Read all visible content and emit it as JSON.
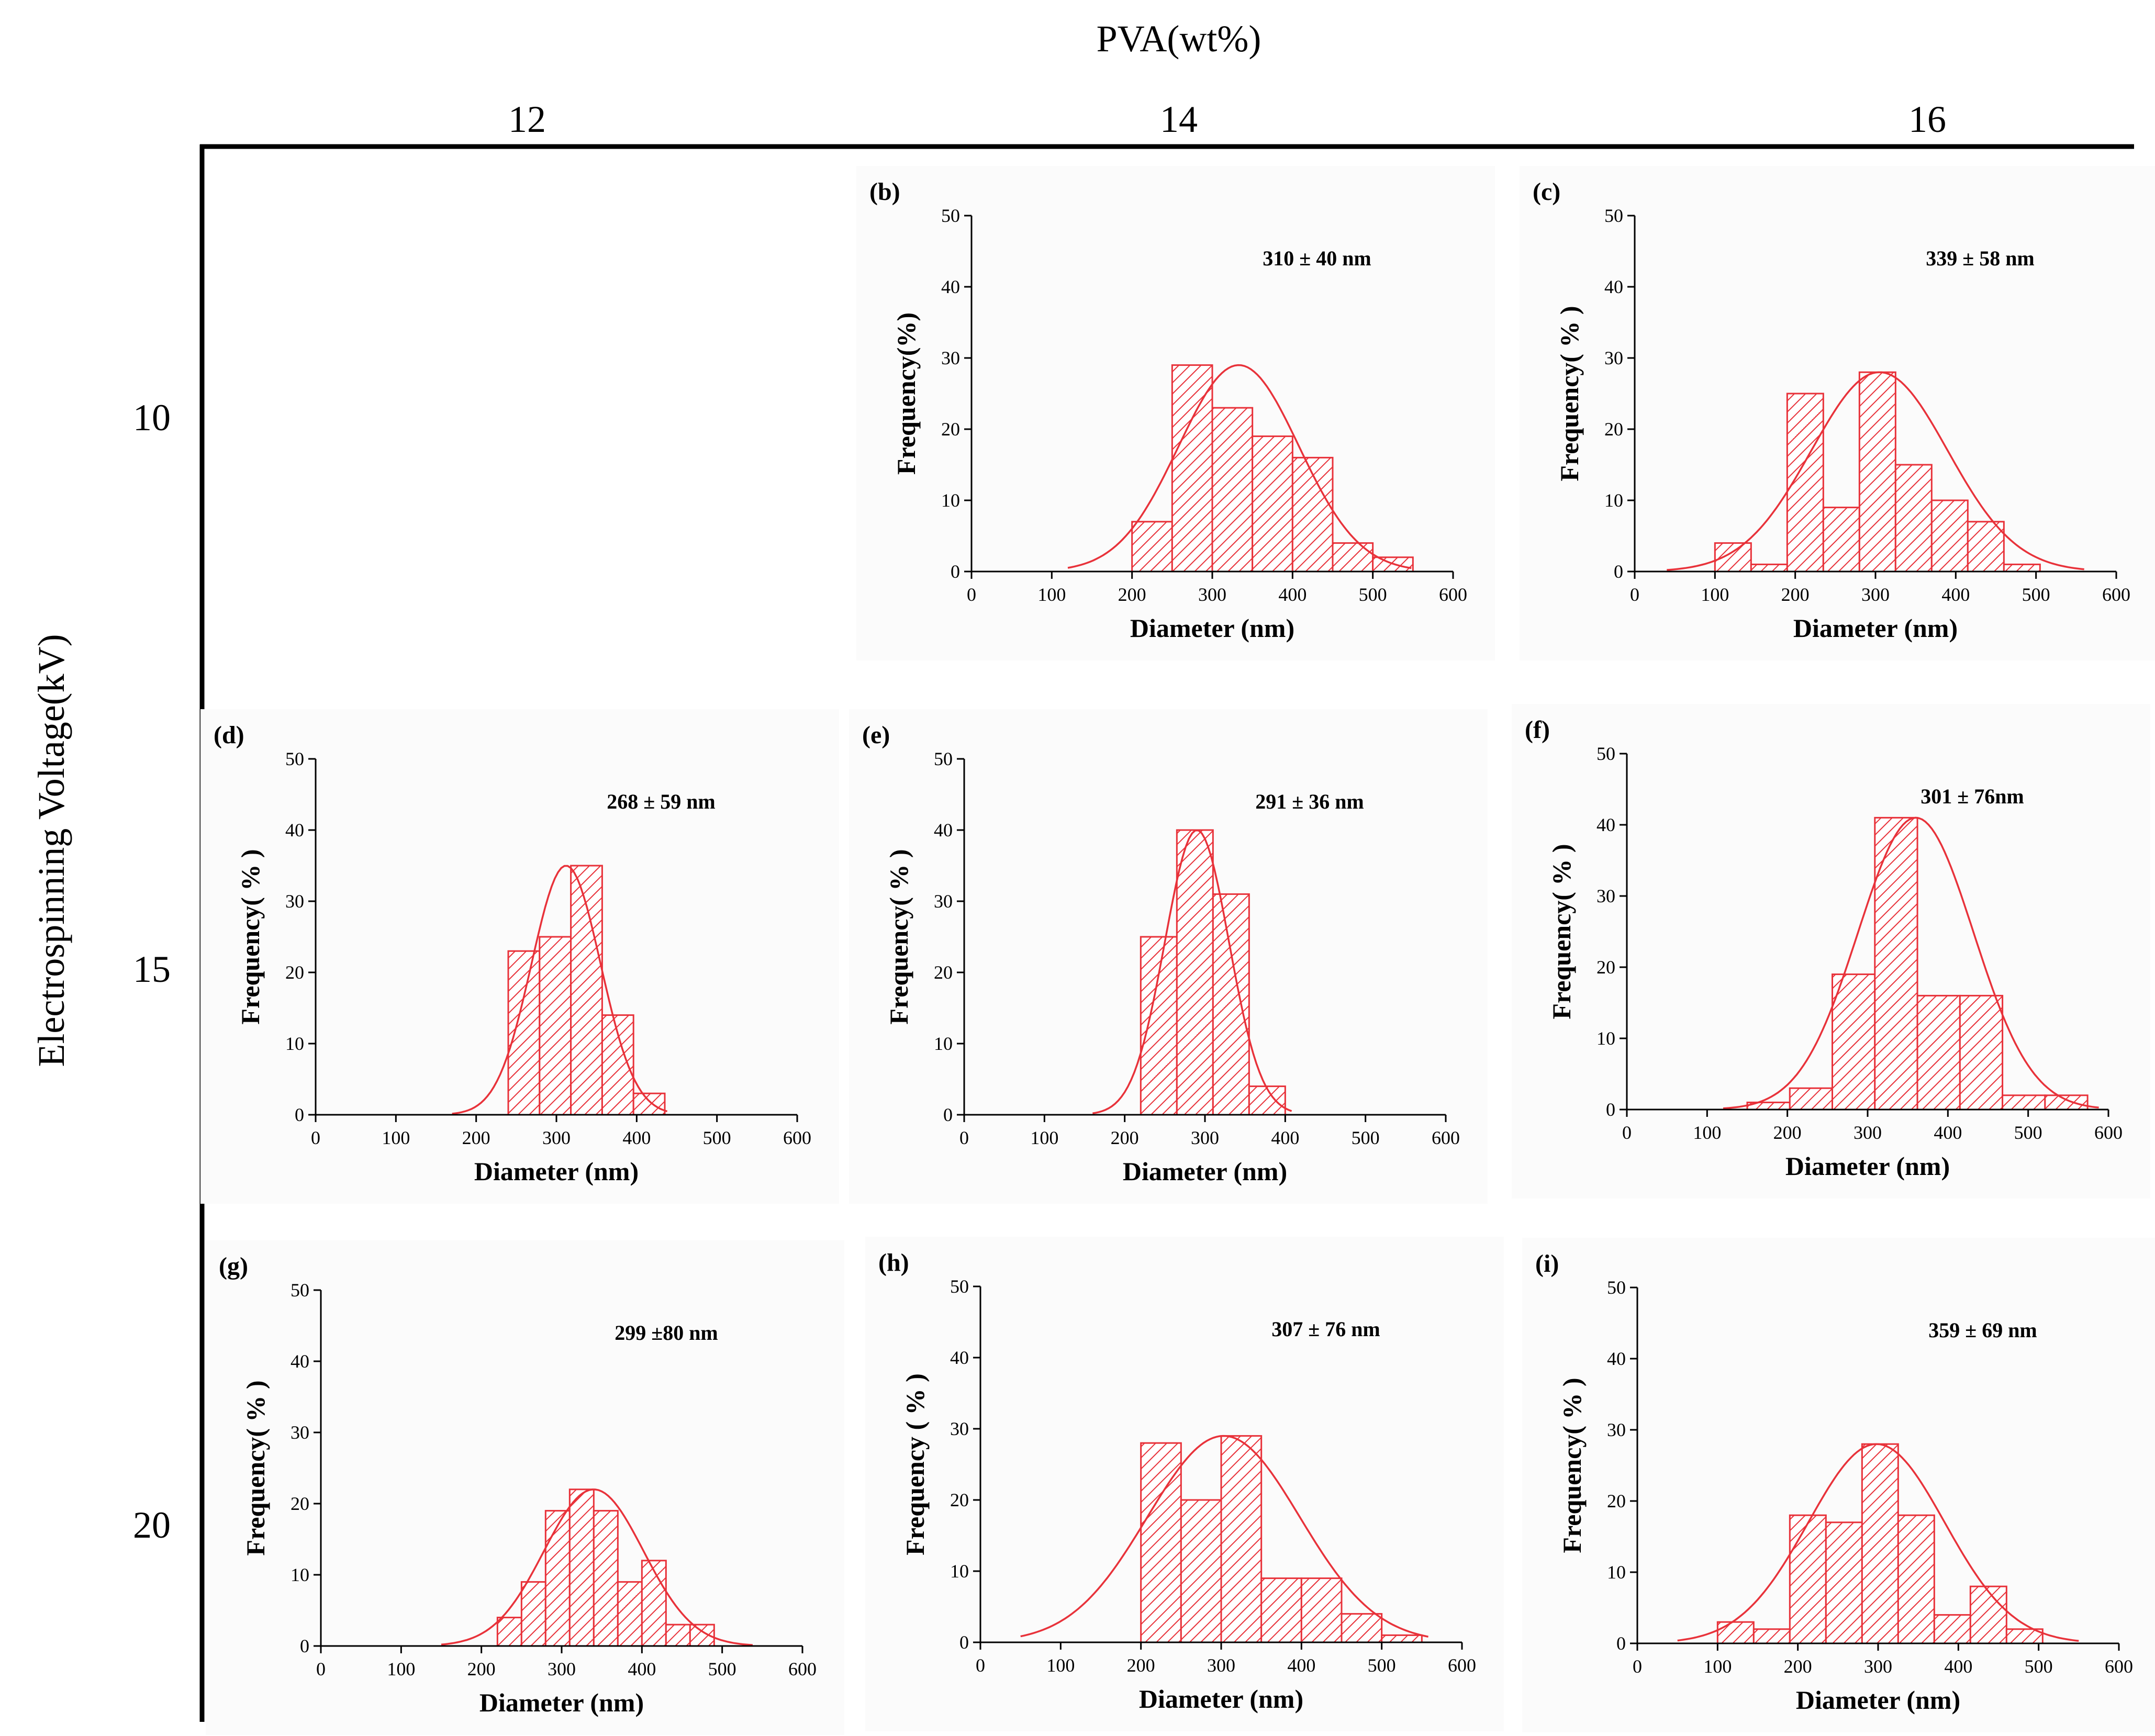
{
  "figure": {
    "top_title": "PVA(wt%)",
    "left_title": "Electrospinning Voltage(kV)",
    "columns": [
      "12",
      "14",
      "16"
    ],
    "rows": [
      "10",
      "15",
      "20"
    ],
    "bar_color": "#e8323a"
  },
  "chart_data": [
    {
      "type": "bar",
      "label": "(b)",
      "stat": "310 ± 40 nm",
      "xlabel": "Diameter (nm)",
      "ylabel": "Frequency(%)",
      "xlim": [
        0,
        600
      ],
      "ylim": [
        0,
        50
      ],
      "xticks": [
        0,
        100,
        200,
        300,
        400,
        500,
        600
      ],
      "yticks": [
        0,
        10,
        20,
        30,
        40,
        50
      ],
      "bin_width": 50,
      "bins": [
        [
          200,
          7
        ],
        [
          250,
          29
        ],
        [
          300,
          23
        ],
        [
          350,
          19
        ],
        [
          400,
          16
        ],
        [
          450,
          4
        ],
        [
          500,
          2
        ]
      ],
      "fit": {
        "mean": 333,
        "sd": 75,
        "peak": 29,
        "range": [
          120,
          550
        ]
      }
    },
    {
      "type": "bar",
      "label": "(c)",
      "stat": "339 ± 58 nm",
      "xlabel": "Diameter (nm)",
      "ylabel": "Frequency( % )",
      "xlim": [
        0,
        600
      ],
      "ylim": [
        0,
        50
      ],
      "xticks": [
        0,
        100,
        200,
        300,
        400,
        500,
        600
      ],
      "yticks": [
        0,
        10,
        20,
        30,
        40,
        50
      ],
      "bin_width": 45,
      "bins": [
        [
          100,
          4
        ],
        [
          145,
          1
        ],
        [
          190,
          25
        ],
        [
          235,
          9
        ],
        [
          280,
          28
        ],
        [
          325,
          15
        ],
        [
          370,
          10
        ],
        [
          415,
          7
        ],
        [
          460,
          1
        ]
      ],
      "fit": {
        "mean": 305,
        "sd": 85,
        "peak": 28,
        "range": [
          40,
          560
        ]
      }
    },
    {
      "type": "bar",
      "label": "(d)",
      "stat": "268 ± 59 nm",
      "xlabel": "Diameter (nm)",
      "ylabel": "Frequency( % )",
      "xlim": [
        0,
        600
      ],
      "ylim": [
        0,
        50
      ],
      "xticks": [
        0,
        100,
        200,
        300,
        400,
        500,
        600
      ],
      "yticks": [
        0,
        10,
        20,
        30,
        40,
        50
      ],
      "bin_width": 39,
      "bins": [
        [
          240,
          23
        ],
        [
          279,
          25
        ],
        [
          318,
          35
        ],
        [
          357,
          14
        ],
        [
          396,
          3
        ]
      ],
      "fit": {
        "mean": 312,
        "sd": 43,
        "peak": 35,
        "range": [
          170,
          440
        ]
      }
    },
    {
      "type": "bar",
      "label": "(e)",
      "stat": "291 ± 36 nm",
      "xlabel": "Diameter (nm)",
      "ylabel": "Frequency( % )",
      "xlim": [
        0,
        600
      ],
      "ylim": [
        0,
        50
      ],
      "xticks": [
        0,
        100,
        200,
        300,
        400,
        500,
        600
      ],
      "yticks": [
        0,
        10,
        20,
        30,
        40,
        50
      ],
      "bin_width": 45,
      "bins": [
        [
          220,
          25
        ],
        [
          265,
          40
        ],
        [
          310,
          31
        ],
        [
          355,
          4
        ]
      ],
      "fit": {
        "mean": 290,
        "sd": 40,
        "peak": 40,
        "range": [
          160,
          410
        ]
      }
    },
    {
      "type": "bar",
      "label": "(f)",
      "stat": "301 ± 76nm",
      "xlabel": "Diameter (nm)",
      "ylabel": "Frequency( % )",
      "xlim": [
        0,
        600
      ],
      "ylim": [
        0,
        50
      ],
      "xticks": [
        0,
        100,
        200,
        300,
        400,
        500,
        600
      ],
      "yticks": [
        0,
        10,
        20,
        30,
        40,
        50
      ],
      "bin_width": 53,
      "bins": [
        [
          150,
          1
        ],
        [
          203,
          3
        ],
        [
          256,
          19
        ],
        [
          309,
          41
        ],
        [
          362,
          16
        ],
        [
          415,
          16
        ],
        [
          468,
          2
        ],
        [
          521,
          2
        ]
      ],
      "fit": {
        "mean": 360,
        "sd": 72,
        "peak": 41,
        "range": [
          120,
          590
        ]
      }
    },
    {
      "type": "bar",
      "label": "(g)",
      "stat": "299 ±80 nm",
      "xlabel": "Diameter (nm)",
      "ylabel": "Frequency( % )",
      "xlim": [
        0,
        600
      ],
      "ylim": [
        0,
        50
      ],
      "xticks": [
        0,
        100,
        200,
        300,
        400,
        500,
        600
      ],
      "yticks": [
        0,
        10,
        20,
        30,
        40,
        50
      ],
      "bin_width": 30,
      "bins": [
        [
          220,
          4
        ],
        [
          250,
          9
        ],
        [
          280,
          19
        ],
        [
          310,
          22
        ],
        [
          340,
          19
        ],
        [
          370,
          9
        ],
        [
          400,
          12
        ],
        [
          430,
          3
        ],
        [
          460,
          3
        ]
      ],
      "fit": {
        "mean": 340,
        "sd": 62,
        "peak": 22,
        "range": [
          150,
          540
        ]
      }
    },
    {
      "type": "bar",
      "label": "(h)",
      "stat": "307 ± 76 nm",
      "xlabel": "Diameter (nm)",
      "ylabel": "Frequency ( % )",
      "xlim": [
        0,
        600
      ],
      "ylim": [
        0,
        50
      ],
      "xticks": [
        0,
        100,
        200,
        300,
        400,
        500,
        600
      ],
      "yticks": [
        0,
        10,
        20,
        30,
        40,
        50
      ],
      "bin_width": 50,
      "bins": [
        [
          200,
          28
        ],
        [
          250,
          20
        ],
        [
          300,
          29
        ],
        [
          350,
          9
        ],
        [
          400,
          9
        ],
        [
          450,
          4
        ],
        [
          500,
          1
        ]
      ],
      "fit": {
        "mean": 303,
        "sd": 95,
        "peak": 29,
        "range": [
          50,
          560
        ]
      }
    },
    {
      "type": "bar",
      "label": "(i)",
      "stat": "359 ± 69 nm",
      "xlabel": "Diameter (nm)",
      "ylabel": "Frequency( % )",
      "xlim": [
        0,
        600
      ],
      "ylim": [
        0,
        50
      ],
      "xticks": [
        0,
        100,
        200,
        300,
        400,
        500,
        600
      ],
      "yticks": [
        0,
        10,
        20,
        30,
        40,
        50
      ],
      "bin_width": 45,
      "bins": [
        [
          100,
          3
        ],
        [
          145,
          2
        ],
        [
          190,
          18
        ],
        [
          235,
          17
        ],
        [
          280,
          28
        ],
        [
          325,
          18
        ],
        [
          370,
          4
        ],
        [
          415,
          8
        ],
        [
          460,
          2
        ]
      ],
      "fit": {
        "mean": 298,
        "sd": 85,
        "peak": 28,
        "range": [
          50,
          550
        ]
      }
    }
  ]
}
